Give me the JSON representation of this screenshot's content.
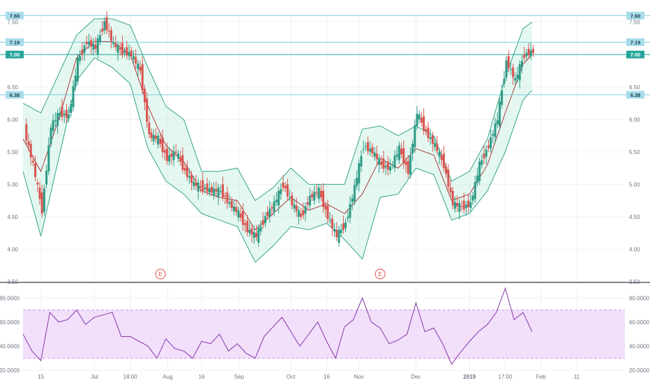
{
  "colors": {
    "background": "#ffffff",
    "grid": "#eef1f5",
    "axis_text": "#6d7380",
    "up": "#2e9a86",
    "down": "#d9534f",
    "bb_fill": "#b2ead8",
    "bb_line": "#35a489",
    "ma_line": "#a83a3a",
    "hline": "#7ccfe0",
    "price_tag": "#a9dceb",
    "current_tag": "#26a69a",
    "rsi_line": "#8e44ad",
    "rsi_band": "#eed6fa",
    "rsi_band_edge": "#d28ee8",
    "event_marker": "#e04a4a",
    "separator": "#5a5f6a"
  },
  "chart_data": [
    {
      "type": "candlestick",
      "panel": "price",
      "ylim": [
        3.5,
        7.62
      ],
      "y_ticks": [
        "3.50",
        "4.00",
        "4.50",
        "5.00",
        "5.50",
        "6.00",
        "6.50",
        "7.50"
      ],
      "x_tick_labels": [
        {
          "label": "15",
          "x": 1.0
        },
        {
          "label": "Jul",
          "x": 4.0
        },
        {
          "label": "18:00",
          "x": 6.0
        },
        {
          "label": "Aug",
          "x": 8.1
        },
        {
          "label": "16",
          "x": 10.0
        },
        {
          "label": "Sep",
          "x": 12.1
        },
        {
          "label": "Oct",
          "x": 15.0
        },
        {
          "label": "16",
          "x": 17.0
        },
        {
          "label": "Nov",
          "x": 18.8
        },
        {
          "label": "Dec",
          "x": 22.0
        },
        {
          "label": "2019",
          "x": 25.0
        },
        {
          "label": "17:00",
          "x": 27.0
        },
        {
          "label": "Feb",
          "x": 29.0
        },
        {
          "label": "11",
          "x": 31.0
        }
      ],
      "x_range": [
        0,
        33.7
      ],
      "horizontal_levels": [
        {
          "value": 7.6,
          "label": "7.60"
        },
        {
          "value": 7.19,
          "label": "7.19"
        },
        {
          "value": 7.0,
          "label": "7.00",
          "current": true
        },
        {
          "value": 6.38,
          "label": "6.38"
        }
      ],
      "bollinger": {
        "upper": [
          [
            0.0,
            6.25
          ],
          [
            1.0,
            6.1
          ],
          [
            2.0,
            6.7
          ],
          [
            3.0,
            7.3
          ],
          [
            4.0,
            7.55
          ],
          [
            5.0,
            7.55
          ],
          [
            6.0,
            7.45
          ],
          [
            7.0,
            6.8
          ],
          [
            8.0,
            6.2
          ],
          [
            9.0,
            6.0
          ],
          [
            10.0,
            5.2
          ],
          [
            11.0,
            5.2
          ],
          [
            12.0,
            5.25
          ],
          [
            13.0,
            4.75
          ],
          [
            14.0,
            4.95
          ],
          [
            15.0,
            5.25
          ],
          [
            16.0,
            5.0
          ],
          [
            17.0,
            5.0
          ],
          [
            18.0,
            5.0
          ],
          [
            19.0,
            5.85
          ],
          [
            20.0,
            5.9
          ],
          [
            21.0,
            5.75
          ],
          [
            22.0,
            5.9
          ],
          [
            23.0,
            5.75
          ],
          [
            24.0,
            5.05
          ],
          [
            25.0,
            5.2
          ],
          [
            26.0,
            5.7
          ],
          [
            27.0,
            6.65
          ],
          [
            28.0,
            7.4
          ],
          [
            28.5,
            7.5
          ]
        ],
        "lower": [
          [
            0.0,
            5.2
          ],
          [
            1.0,
            4.2
          ],
          [
            2.0,
            5.4
          ],
          [
            3.0,
            6.6
          ],
          [
            4.0,
            6.95
          ],
          [
            5.0,
            6.8
          ],
          [
            6.0,
            6.55
          ],
          [
            7.0,
            5.55
          ],
          [
            8.0,
            5.05
          ],
          [
            9.0,
            4.85
          ],
          [
            10.0,
            4.55
          ],
          [
            11.0,
            4.45
          ],
          [
            12.0,
            4.35
          ],
          [
            13.0,
            3.8
          ],
          [
            14.0,
            4.05
          ],
          [
            15.0,
            4.35
          ],
          [
            16.0,
            4.3
          ],
          [
            17.0,
            4.4
          ],
          [
            18.0,
            4.15
          ],
          [
            19.0,
            3.85
          ],
          [
            20.0,
            4.8
          ],
          [
            21.0,
            4.85
          ],
          [
            22.0,
            5.25
          ],
          [
            23.0,
            5.15
          ],
          [
            24.0,
            4.45
          ],
          [
            25.0,
            4.55
          ],
          [
            26.0,
            4.9
          ],
          [
            27.0,
            5.5
          ],
          [
            28.0,
            6.3
          ],
          [
            28.5,
            6.45
          ]
        ],
        "middle": [
          [
            0.0,
            5.7
          ],
          [
            1.0,
            5.2
          ],
          [
            2.0,
            6.0
          ],
          [
            3.0,
            6.95
          ],
          [
            4.0,
            7.2
          ],
          [
            5.0,
            7.2
          ],
          [
            6.0,
            7.0
          ],
          [
            7.0,
            6.2
          ],
          [
            8.0,
            5.6
          ],
          [
            9.0,
            5.35
          ],
          [
            10.0,
            4.9
          ],
          [
            11.0,
            4.8
          ],
          [
            12.0,
            4.75
          ],
          [
            13.0,
            4.3
          ],
          [
            14.0,
            4.55
          ],
          [
            15.0,
            4.8
          ],
          [
            16.0,
            4.6
          ],
          [
            17.0,
            4.7
          ],
          [
            18.0,
            4.55
          ],
          [
            19.0,
            4.85
          ],
          [
            20.0,
            5.4
          ],
          [
            21.0,
            5.25
          ],
          [
            22.0,
            5.55
          ],
          [
            23.0,
            5.45
          ],
          [
            24.0,
            4.75
          ],
          [
            25.0,
            4.85
          ],
          [
            26.0,
            5.3
          ],
          [
            27.0,
            6.1
          ],
          [
            28.0,
            6.85
          ],
          [
            28.5,
            7.0
          ]
        ]
      },
      "candles": [
        [
          0.0,
          5.85
        ],
        [
          0.5,
          5.3
        ],
        [
          1.0,
          4.6
        ],
        [
          1.5,
          5.9
        ],
        [
          2.0,
          6.1
        ],
        [
          2.5,
          6.05
        ],
        [
          3.0,
          6.9
        ],
        [
          3.5,
          7.2
        ],
        [
          4.0,
          7.1
        ],
        [
          4.5,
          7.5
        ],
        [
          5.0,
          7.15
        ],
        [
          5.5,
          7.05
        ],
        [
          6.0,
          7.0
        ],
        [
          6.5,
          6.75
        ],
        [
          7.0,
          5.75
        ],
        [
          7.5,
          5.7
        ],
        [
          8.0,
          5.4
        ],
        [
          8.5,
          5.5
        ],
        [
          9.0,
          5.2
        ],
        [
          9.5,
          5.0
        ],
        [
          10.0,
          4.95
        ],
        [
          10.5,
          4.9
        ],
        [
          11.0,
          4.9
        ],
        [
          11.5,
          4.7
        ],
        [
          12.0,
          4.55
        ],
        [
          12.5,
          4.3
        ],
        [
          13.0,
          4.2
        ],
        [
          13.5,
          4.5
        ],
        [
          14.0,
          4.7
        ],
        [
          14.5,
          5.0
        ],
        [
          15.0,
          4.7
        ],
        [
          15.5,
          4.5
        ],
        [
          16.0,
          4.8
        ],
        [
          16.5,
          4.9
        ],
        [
          17.0,
          4.5
        ],
        [
          17.5,
          4.2
        ],
        [
          18.0,
          4.4
        ],
        [
          18.5,
          4.95
        ],
        [
          19.0,
          5.6
        ],
        [
          19.5,
          5.5
        ],
        [
          20.0,
          5.3
        ],
        [
          20.5,
          5.25
        ],
        [
          21.0,
          5.55
        ],
        [
          21.5,
          5.2
        ],
        [
          22.0,
          6.1
        ],
        [
          22.5,
          5.8
        ],
        [
          23.0,
          5.6
        ],
        [
          23.5,
          5.3
        ],
        [
          24.0,
          4.7
        ],
        [
          24.5,
          4.65
        ],
        [
          25.0,
          4.7
        ],
        [
          25.5,
          5.3
        ],
        [
          26.0,
          5.6
        ],
        [
          26.5,
          6.0
        ],
        [
          27.0,
          6.9
        ],
        [
          27.5,
          6.6
        ],
        [
          28.0,
          7.0
        ],
        [
          28.5,
          7.05
        ]
      ],
      "event_markers": [
        {
          "x": 7.7,
          "label": "E"
        },
        {
          "x": 20.0,
          "label": "E"
        }
      ]
    },
    {
      "type": "line",
      "panel": "rsi",
      "ylim": [
        20,
        90
      ],
      "y_ticks": [
        "20.0000",
        "40.0000",
        "60.0000",
        "80.0000"
      ],
      "band": [
        30,
        70
      ],
      "x": [
        0,
        0.5,
        1,
        1.5,
        2,
        2.5,
        3,
        3.5,
        4,
        4.5,
        5,
        5.5,
        6,
        6.5,
        7,
        7.5,
        8,
        8.5,
        9,
        9.5,
        10,
        10.5,
        11,
        11.5,
        12,
        12.5,
        13,
        13.5,
        14,
        14.5,
        15,
        15.5,
        16,
        16.5,
        17,
        17.5,
        18,
        18.5,
        19,
        19.5,
        20,
        20.5,
        21,
        21.5,
        22,
        22.5,
        23,
        23.5,
        24,
        24.5,
        25,
        25.5,
        26,
        26.5,
        27,
        27.5,
        28,
        28.5
      ],
      "values": [
        50,
        36,
        28,
        68,
        60,
        62,
        70,
        58,
        64,
        66,
        68,
        48,
        48,
        44,
        40,
        30,
        46,
        38,
        36,
        30,
        44,
        42,
        50,
        36,
        42,
        34,
        30,
        48,
        56,
        64,
        52,
        40,
        50,
        60,
        44,
        30,
        56,
        62,
        80,
        60,
        55,
        42,
        45,
        50,
        76,
        52,
        55,
        42,
        25,
        35,
        44,
        52,
        58,
        68,
        88,
        62,
        68,
        52
      ]
    }
  ]
}
